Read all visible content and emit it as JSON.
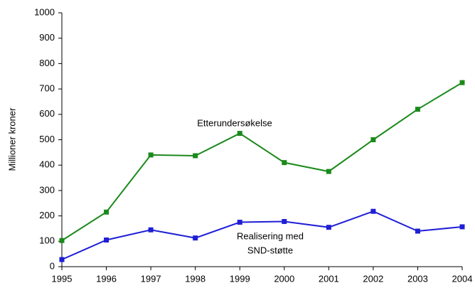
{
  "chart_data": {
    "type": "line",
    "y_label": "Millioner kroner",
    "x": [
      1995,
      1996,
      1997,
      1998,
      1999,
      2000,
      2001,
      2002,
      2003,
      2004
    ],
    "xlim": [
      1995,
      2004
    ],
    "xticks": [
      1995,
      1996,
      1997,
      1998,
      1999,
      2000,
      2001,
      2002,
      2003,
      2004
    ],
    "ylim": [
      0,
      1000
    ],
    "yticks": [
      0,
      100,
      200,
      300,
      400,
      500,
      600,
      700,
      800,
      900,
      1000
    ],
    "grid": false,
    "series": [
      {
        "color": "#1a8a1a",
        "values": [
          103,
          215,
          440,
          437,
          525,
          410,
          375,
          500,
          620,
          725
        ]
      },
      {
        "color": "#1f1fd6",
        "values": [
          28,
          105,
          145,
          113,
          175,
          178,
          155,
          218,
          140,
          157
        ]
      }
    ],
    "annotations": [
      "Etterundersøkelse",
      "Realisering med",
      "SND-støtte"
    ]
  }
}
